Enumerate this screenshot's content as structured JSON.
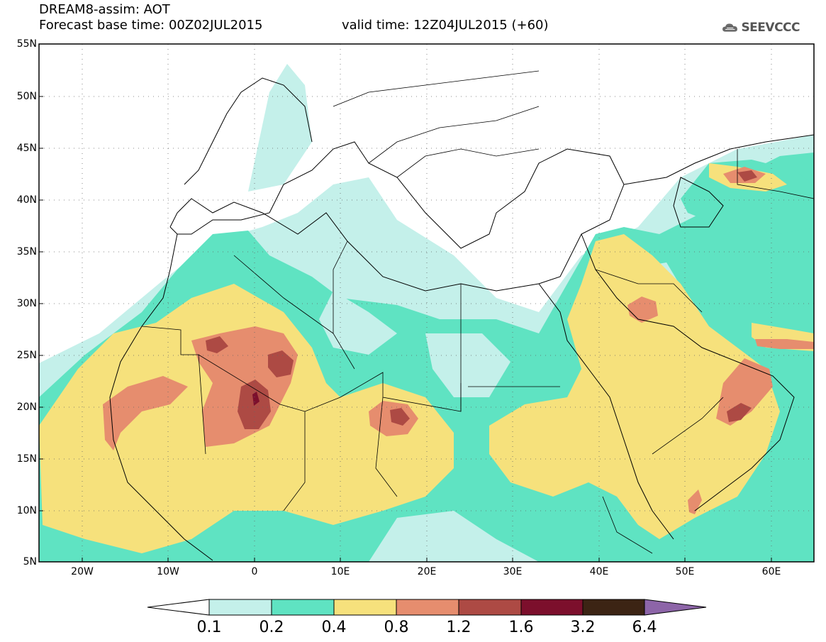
{
  "header": {
    "title_line1": "DREAM8-assim: AOT",
    "title_line2": "Forecast base time: 00Z02JUL2015",
    "valid_time": "valid time: 12Z04JUL2015 (+60)",
    "logo_text": "SEEVCCC",
    "logo_icon": "cloud-icon"
  },
  "map": {
    "lat_range": [
      5,
      55
    ],
    "lon_range": [
      -25,
      65
    ],
    "y_ticks": [
      "55N",
      "50N",
      "45N",
      "40N",
      "35N",
      "30N",
      "25N",
      "20N",
      "15N",
      "10N",
      "5N"
    ],
    "x_ticks": [
      "20W",
      "10W",
      "0",
      "10E",
      "20E",
      "30E",
      "40E",
      "50E",
      "60E"
    ],
    "grid": "dotted"
  },
  "colorbar": {
    "labels": [
      "0.1",
      "0.2",
      "0.4",
      "0.8",
      "1.2",
      "1.6",
      "3.2",
      "6.4"
    ],
    "colors": [
      "#ffffff",
      "#c4f0ea",
      "#5fe3c2",
      "#f6e17c",
      "#e68d6e",
      "#ad4a44",
      "#7c0f2c",
      "#3c2414",
      "#8d65a8"
    ]
  }
}
